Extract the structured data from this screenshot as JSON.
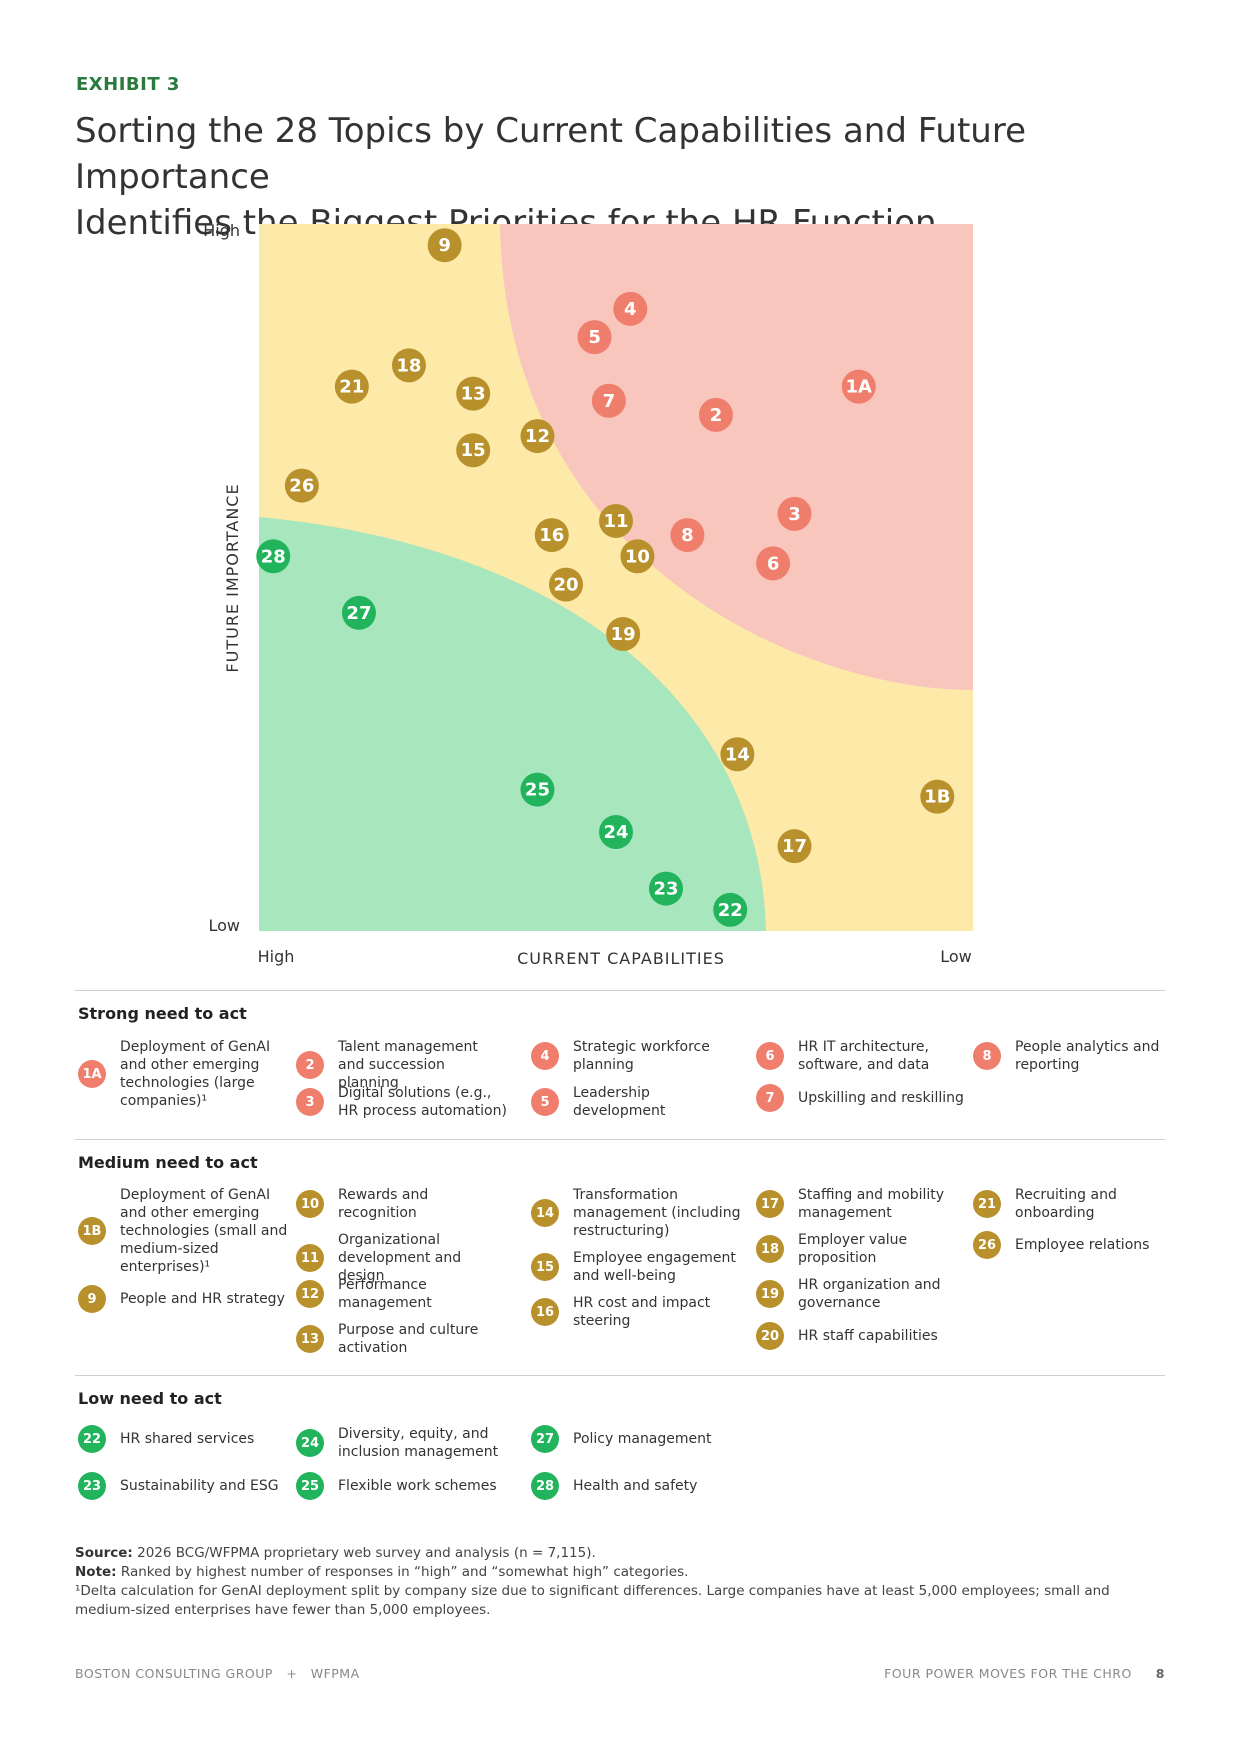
{
  "exhibit_label": "EXHIBIT 3",
  "title_line1": "Sorting the 28 Topics by Current Capabilities and Future Importance",
  "title_line2": "Identifies the Biggest Priorities for the HR Function",
  "colors": {
    "strong": "#ef7e6d",
    "medium": "#b8912c",
    "low": "#22b45c",
    "zone_red": "#f8c6bd",
    "zone_yellow": "#fde9a8",
    "zone_green": "#a8e6bd"
  },
  "chart_data": {
    "type": "scatter",
    "xlabel": "CURRENT CAPABILITIES",
    "ylabel": "FUTURE IMPORTANCE",
    "x_low_label": "Low",
    "x_high_label": "High",
    "y_low_label": "Low",
    "y_high_label": "High",
    "x_direction": "reversed (High on left, Low on right)",
    "xlim": [
      0,
      100
    ],
    "ylim": [
      0,
      100
    ],
    "points": [
      {
        "id": "9",
        "group": "medium",
        "x": 26,
        "y": 97
      },
      {
        "id": "4",
        "group": "strong",
        "x": 52,
        "y": 88
      },
      {
        "id": "5",
        "group": "strong",
        "x": 47,
        "y": 84
      },
      {
        "id": "18",
        "group": "medium",
        "x": 21,
        "y": 80
      },
      {
        "id": "21",
        "group": "medium",
        "x": 13,
        "y": 77
      },
      {
        "id": "13",
        "group": "medium",
        "x": 30,
        "y": 76
      },
      {
        "id": "1A",
        "group": "strong",
        "x": 84,
        "y": 77
      },
      {
        "id": "7",
        "group": "strong",
        "x": 49,
        "y": 75
      },
      {
        "id": "2",
        "group": "strong",
        "x": 64,
        "y": 73
      },
      {
        "id": "12",
        "group": "medium",
        "x": 39,
        "y": 70
      },
      {
        "id": "15",
        "group": "medium",
        "x": 30,
        "y": 68
      },
      {
        "id": "26",
        "group": "medium",
        "x": 6,
        "y": 63
      },
      {
        "id": "3",
        "group": "strong",
        "x": 75,
        "y": 59
      },
      {
        "id": "11",
        "group": "medium",
        "x": 50,
        "y": 58
      },
      {
        "id": "16",
        "group": "medium",
        "x": 41,
        "y": 56
      },
      {
        "id": "8",
        "group": "strong",
        "x": 60,
        "y": 56
      },
      {
        "id": "10",
        "group": "medium",
        "x": 53,
        "y": 53
      },
      {
        "id": "6",
        "group": "strong",
        "x": 72,
        "y": 52
      },
      {
        "id": "28",
        "group": "low",
        "x": 2,
        "y": 53
      },
      {
        "id": "20",
        "group": "medium",
        "x": 43,
        "y": 49
      },
      {
        "id": "27",
        "group": "low",
        "x": 14,
        "y": 45
      },
      {
        "id": "19",
        "group": "medium",
        "x": 51,
        "y": 42
      },
      {
        "id": "14",
        "group": "medium",
        "x": 67,
        "y": 25
      },
      {
        "id": "25",
        "group": "low",
        "x": 39,
        "y": 20
      },
      {
        "id": "1B",
        "group": "medium",
        "x": 95,
        "y": 19
      },
      {
        "id": "24",
        "group": "low",
        "x": 50,
        "y": 14
      },
      {
        "id": "17",
        "group": "medium",
        "x": 75,
        "y": 12
      },
      {
        "id": "23",
        "group": "low",
        "x": 57,
        "y": 6
      },
      {
        "id": "22",
        "group": "low",
        "x": 66,
        "y": 3
      }
    ]
  },
  "legend": {
    "strong_title": "Strong need to act",
    "medium_title": "Medium need to act",
    "low_title": "Low need to act",
    "strong_items": [
      {
        "id": "1A",
        "label": "Deployment of GenAI and other emerging technologies (large companies)¹"
      },
      {
        "id": "2",
        "label": "Talent management and succession planning"
      },
      {
        "id": "3",
        "label": "Digital solutions (e.g., HR process automation)"
      },
      {
        "id": "4",
        "label": "Strategic workforce planning"
      },
      {
        "id": "5",
        "label": "Leadership development"
      },
      {
        "id": "6",
        "label": "HR IT architecture, software, and data"
      },
      {
        "id": "7",
        "label": "Upskilling and reskilling"
      },
      {
        "id": "8",
        "label": "People analytics and reporting"
      }
    ],
    "medium_items": [
      {
        "id": "1B",
        "label": "Deployment of GenAI and other emerging technologies (small and medium-sized enterprises)¹"
      },
      {
        "id": "9",
        "label": "People and HR strategy"
      },
      {
        "id": "10",
        "label": "Rewards and recognition"
      },
      {
        "id": "11",
        "label": "Organizational development and design"
      },
      {
        "id": "12",
        "label": "Performance management"
      },
      {
        "id": "13",
        "label": "Purpose and culture activation"
      },
      {
        "id": "14",
        "label": "Transformation management (including restructuring)"
      },
      {
        "id": "15",
        "label": "Employee engagement and well-being"
      },
      {
        "id": "16",
        "label": "HR cost and impact steering"
      },
      {
        "id": "17",
        "label": "Staffing and mobility management"
      },
      {
        "id": "18",
        "label": "Employer value proposition"
      },
      {
        "id": "19",
        "label": "HR organization and governance"
      },
      {
        "id": "20",
        "label": "HR staff capabilities"
      },
      {
        "id": "21",
        "label": "Recruiting and onboarding"
      },
      {
        "id": "26",
        "label": "Employee relations"
      }
    ],
    "low_items": [
      {
        "id": "22",
        "label": "HR shared services"
      },
      {
        "id": "23",
        "label": "Sustainability and ESG"
      },
      {
        "id": "24",
        "label": "Diversity, equity, and inclusion management"
      },
      {
        "id": "25",
        "label": "Flexible work schemes"
      },
      {
        "id": "27",
        "label": "Policy management"
      },
      {
        "id": "28",
        "label": "Health and safety"
      }
    ]
  },
  "notes": {
    "source_label": "Source:",
    "source_text": " 2026 BCG/WFPMA proprietary web survey and analysis (n = 7,115).",
    "note_label": "Note:",
    "note_text": " Ranked by highest number of responses in “high” and “somewhat high” categories.",
    "footnote": "¹Delta calculation for GenAI deployment split by company size due to significant differences. Large companies have at least 5,000 employees; small and medium-sized enterprises have fewer than 5,000 employees."
  },
  "footer": {
    "left": "BOSTON CONSULTING GROUP   +   WFPMA",
    "right": "FOUR POWER MOVES FOR THE CHRO",
    "page": "8"
  }
}
